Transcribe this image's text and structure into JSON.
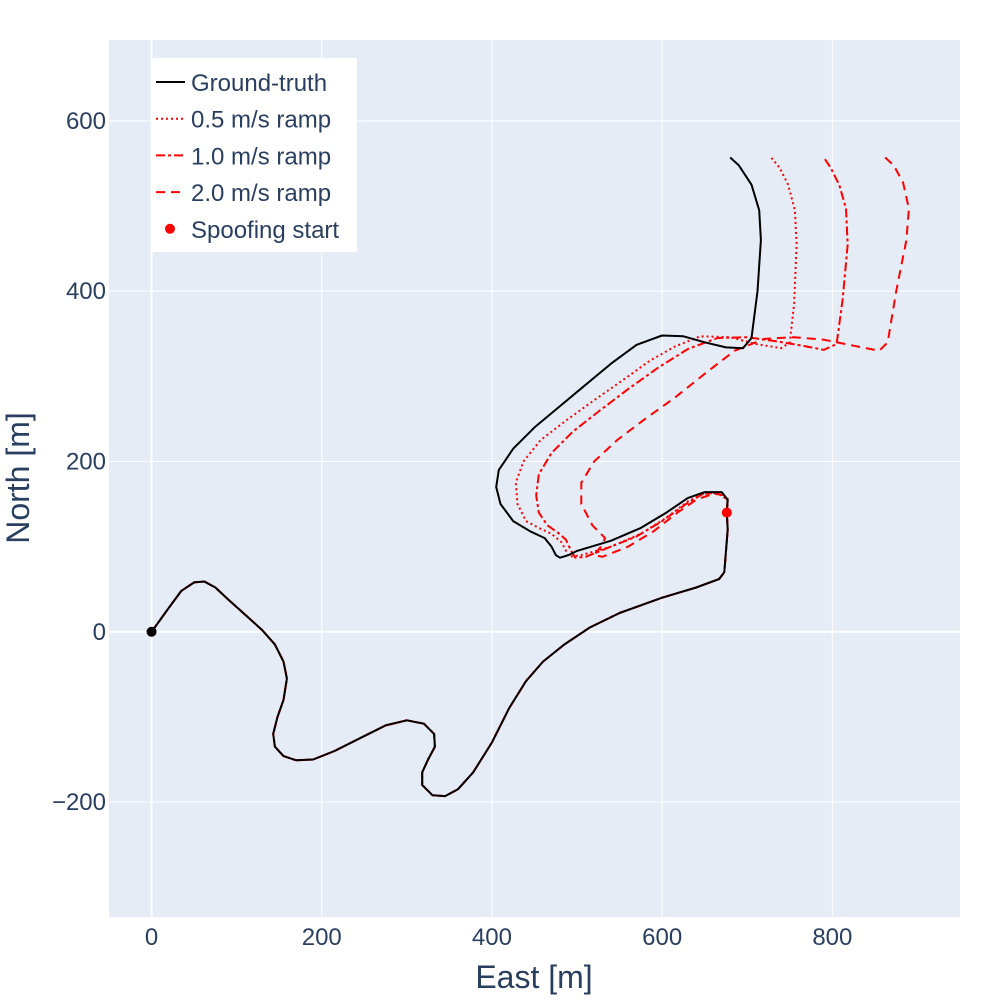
{
  "chart_data": {
    "type": "line",
    "xlabel": "East [m]",
    "ylabel": "North [m]",
    "xlim": [
      -50,
      950
    ],
    "ylim": [
      -335,
      695
    ],
    "xticks": [
      0,
      200,
      400,
      600,
      800
    ],
    "yticks": [
      -200,
      0,
      200,
      400,
      600
    ],
    "xtick_labels": [
      "0",
      "200",
      "400",
      "600",
      "800"
    ],
    "ytick_labels": [
      "−200",
      "0",
      "200",
      "400",
      "600"
    ],
    "grid": true,
    "legend_position": "top-left",
    "colors": {
      "background": "#e5ecf6",
      "grid": "#ffffff",
      "ground_truth": "#000000",
      "spoofed": "#ff0000",
      "text": "#2a3f5f"
    },
    "common_path": [
      [
        0,
        0
      ],
      [
        18,
        25
      ],
      [
        35,
        48
      ],
      [
        50,
        58
      ],
      [
        62,
        59
      ],
      [
        75,
        52
      ],
      [
        90,
        38
      ],
      [
        110,
        20
      ],
      [
        130,
        2
      ],
      [
        145,
        -15
      ],
      [
        155,
        -35
      ],
      [
        159,
        -55
      ],
      [
        155,
        -80
      ],
      [
        148,
        -100
      ],
      [
        143,
        -120
      ],
      [
        145,
        -135
      ],
      [
        155,
        -146
      ],
      [
        170,
        -151
      ],
      [
        190,
        -150
      ],
      [
        215,
        -140
      ],
      [
        245,
        -125
      ],
      [
        275,
        -110
      ],
      [
        300,
        -104
      ],
      [
        320,
        -108
      ],
      [
        332,
        -120
      ],
      [
        333,
        -135
      ],
      [
        325,
        -150
      ],
      [
        318,
        -165
      ],
      [
        318,
        -180
      ],
      [
        330,
        -192
      ],
      [
        345,
        -193
      ],
      [
        360,
        -185
      ],
      [
        378,
        -165
      ],
      [
        400,
        -130
      ],
      [
        420,
        -90
      ],
      [
        440,
        -58
      ],
      [
        460,
        -35
      ],
      [
        485,
        -15
      ],
      [
        515,
        5
      ],
      [
        550,
        22
      ],
      [
        600,
        40
      ],
      [
        640,
        52
      ],
      [
        667,
        62
      ],
      [
        673,
        70
      ],
      [
        677,
        120
      ],
      [
        676,
        140
      ]
    ],
    "series": [
      {
        "name": "Ground-truth",
        "dash": "solid",
        "path_after_start": [
          [
            677,
            155
          ],
          [
            670,
            164
          ],
          [
            650,
            164
          ],
          [
            630,
            157
          ],
          [
            605,
            140
          ],
          [
            575,
            122
          ],
          [
            540,
            107
          ],
          [
            500,
            95
          ],
          [
            490,
            90
          ],
          [
            480,
            87
          ],
          [
            475,
            90
          ],
          [
            470,
            100
          ],
          [
            462,
            110
          ],
          [
            445,
            118
          ],
          [
            425,
            130
          ],
          [
            410,
            150
          ],
          [
            405,
            170
          ],
          [
            408,
            190
          ],
          [
            425,
            215
          ],
          [
            450,
            240
          ],
          [
            480,
            265
          ],
          [
            510,
            290
          ],
          [
            540,
            315
          ],
          [
            570,
            337
          ],
          [
            600,
            348
          ],
          [
            625,
            347
          ],
          [
            650,
            340
          ],
          [
            675,
            334
          ],
          [
            695,
            333
          ],
          [
            705,
            345
          ],
          [
            712,
            400
          ],
          [
            716,
            460
          ],
          [
            714,
            495
          ],
          [
            705,
            525
          ],
          [
            690,
            548
          ],
          [
            680,
            557
          ]
        ]
      },
      {
        "name": "0.5 m/s ramp",
        "dash": "dotted",
        "path_after_start": [
          [
            677,
            155
          ],
          [
            665,
            163
          ],
          [
            648,
            162
          ],
          [
            630,
            153
          ],
          [
            605,
            134
          ],
          [
            575,
            115
          ],
          [
            540,
            100
          ],
          [
            505,
            90
          ],
          [
            490,
            88
          ],
          [
            487,
            95
          ],
          [
            482,
            105
          ],
          [
            470,
            115
          ],
          [
            455,
            122
          ],
          [
            440,
            130
          ],
          [
            430,
            150
          ],
          [
            428,
            175
          ],
          [
            437,
            200
          ],
          [
            457,
            225
          ],
          [
            487,
            248
          ],
          [
            520,
            272
          ],
          [
            553,
            295
          ],
          [
            585,
            318
          ],
          [
            615,
            335
          ],
          [
            645,
            347
          ],
          [
            680,
            346
          ],
          [
            710,
            338
          ],
          [
            740,
            333
          ],
          [
            750,
            340
          ],
          [
            755,
            385
          ],
          [
            758,
            455
          ],
          [
            756,
            495
          ],
          [
            748,
            525
          ],
          [
            738,
            545
          ],
          [
            728,
            557
          ]
        ]
      },
      {
        "name": "1.0 m/s ramp",
        "dash": "dashdot",
        "path_after_start": [
          [
            677,
            155
          ],
          [
            665,
            163
          ],
          [
            648,
            162
          ],
          [
            628,
            150
          ],
          [
            600,
            130
          ],
          [
            570,
            112
          ],
          [
            535,
            98
          ],
          [
            510,
            88
          ],
          [
            498,
            87
          ],
          [
            493,
            95
          ],
          [
            487,
            108
          ],
          [
            478,
            116
          ],
          [
            465,
            125
          ],
          [
            455,
            140
          ],
          [
            452,
            160
          ],
          [
            455,
            185
          ],
          [
            470,
            210
          ],
          [
            495,
            235
          ],
          [
            527,
            260
          ],
          [
            560,
            285
          ],
          [
            595,
            310
          ],
          [
            630,
            332
          ],
          [
            665,
            345
          ],
          [
            700,
            346
          ],
          [
            735,
            341
          ],
          [
            765,
            336
          ],
          [
            790,
            331
          ],
          [
            805,
            338
          ],
          [
            812,
            390
          ],
          [
            818,
            455
          ],
          [
            816,
            497
          ],
          [
            808,
            525
          ],
          [
            798,
            545
          ],
          [
            790,
            557
          ]
        ]
      },
      {
        "name": "2.0 m/s ramp",
        "dash": "dashed",
        "path_after_start": [
          [
            677,
            160
          ],
          [
            660,
            162
          ],
          [
            640,
            155
          ],
          [
            618,
            140
          ],
          [
            590,
            118
          ],
          [
            560,
            100
          ],
          [
            530,
            88
          ],
          [
            520,
            90
          ],
          [
            528,
            100
          ],
          [
            533,
            110
          ],
          [
            518,
            125
          ],
          [
            505,
            150
          ],
          [
            505,
            175
          ],
          [
            520,
            200
          ],
          [
            547,
            225
          ],
          [
            580,
            250
          ],
          [
            615,
            275
          ],
          [
            650,
            303
          ],
          [
            685,
            330
          ],
          [
            720,
            344
          ],
          [
            755,
            346
          ],
          [
            790,
            343
          ],
          [
            825,
            336
          ],
          [
            855,
            330
          ],
          [
            865,
            340
          ],
          [
            875,
            400
          ],
          [
            887,
            460
          ],
          [
            890,
            497
          ],
          [
            883,
            528
          ],
          [
            872,
            548
          ],
          [
            862,
            557
          ]
        ]
      }
    ],
    "markers": [
      {
        "name": "Spoofing start",
        "x": 676,
        "y": 140,
        "color": "#ff0000"
      },
      {
        "name": "",
        "x": 0,
        "y": 0,
        "color": "#000000"
      }
    ],
    "legend": [
      {
        "label": "Ground-truth",
        "style": "solid-line"
      },
      {
        "label": "0.5 m/s ramp",
        "style": "dotted-line"
      },
      {
        "label": "1.0 m/s ramp",
        "style": "dashdot-line"
      },
      {
        "label": "2.0 m/s ramp",
        "style": "dashed-line"
      },
      {
        "label": "Spoofing start",
        "style": "red-dot"
      }
    ]
  }
}
